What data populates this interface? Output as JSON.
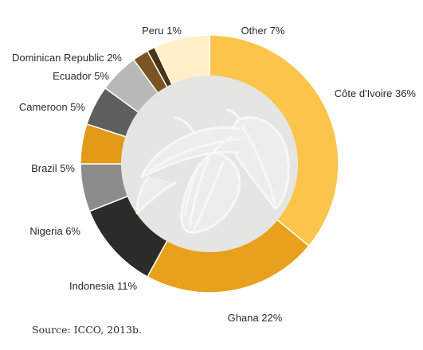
{
  "chart_data": {
    "type": "pie",
    "style": "donut",
    "title": "",
    "slices": [
      {
        "name": "Côte d'Ivoire",
        "label": "Côte d'Ivoire 36%",
        "value": 36,
        "color": "#fcc54a"
      },
      {
        "name": "Ghana",
        "label": "Ghana 22%",
        "value": 22,
        "color": "#e8a11c"
      },
      {
        "name": "Indonesia",
        "label": "Indonesia 11%",
        "value": 11,
        "color": "#2b2b27"
      },
      {
        "name": "Nigeria",
        "label": "Nigeria 6%",
        "value": 6,
        "color": "#8c8c8b"
      },
      {
        "name": "Brazil",
        "label": "Brazil 5%",
        "value": 5,
        "color": "#e59a17"
      },
      {
        "name": "Cameroon",
        "label": "Cameroon 5%",
        "value": 5,
        "color": "#5d5f5d"
      },
      {
        "name": "Ecuador",
        "label": "Ecuador 5%",
        "value": 5,
        "color": "#b8b9b7"
      },
      {
        "name": "Dominican Republic",
        "label": "Dominican Republic 2%",
        "value": 2,
        "color": "#7b5324"
      },
      {
        "name": "Peru",
        "label": "Peru 1%",
        "value": 1,
        "color": "#4a3513"
      },
      {
        "name": "Other",
        "label": "Other 7%",
        "value": 7,
        "color": "#fdf0c9"
      }
    ],
    "center_image": "cocoa-pod-watermark-icon",
    "center_color": "#e5e5e4"
  },
  "source": "Source: ICCO, 2013b."
}
